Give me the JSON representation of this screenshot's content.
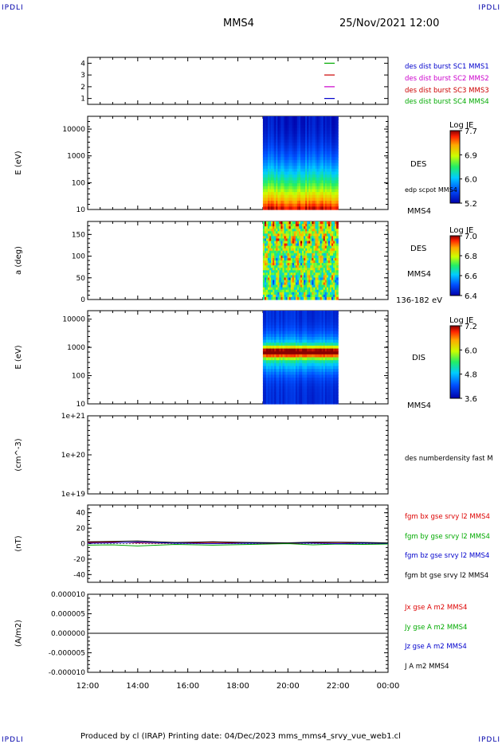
{
  "corners": {
    "top_left": "IPDLI",
    "top_right": "IPDLI",
    "bottom_left": "IPDLI",
    "bottom_right": "IPDLI"
  },
  "header": {
    "spacecraft": "MMS4",
    "datetime": "25/Nov/2021 12:00"
  },
  "footer": {
    "text": "Produced by cl (IRAP)   Printing date: 04/Dec/2023   mms_mms4_srvy_vue_web1.cl"
  },
  "colors": {
    "mms1": "#0000cc",
    "mms2": "#cc00cc",
    "mms3": "#cc0000",
    "mms4": "#00aa00",
    "bx": "#dd0000",
    "by": "#00aa00",
    "bz": "#0000cc",
    "bt": "#000000"
  },
  "chart_data": [
    {
      "type": "line",
      "ylim": [
        0.5,
        4.5
      ],
      "y_ticks": [
        "1",
        "2",
        "3",
        "4"
      ],
      "series": [
        {
          "name": "des dist burst SC1 MMS1",
          "y": 1,
          "color": "#0000cc"
        },
        {
          "name": "des dist burst SC2 MMS2",
          "y": 2,
          "color": "#cc00cc"
        },
        {
          "name": "des dist burst SC3 MMS3",
          "y": 3,
          "color": "#cc0000"
        },
        {
          "name": "des dist burst SC4 MMS4",
          "y": 4,
          "color": "#00aa00"
        }
      ]
    },
    {
      "type": "heatmap",
      "ylabel": "E (eV)",
      "y_ticks": [
        "10",
        "100",
        "1000",
        "10000"
      ],
      "ylim": [
        10,
        30000
      ],
      "data_range_hours": [
        19.0,
        22.0
      ],
      "colorbar_title": "Log JE",
      "colorbar_ticks": [
        "7.7",
        "6.9",
        "6.0",
        "5.2"
      ],
      "right_labels": [
        "DES",
        "edp scpot MMS4",
        "MMS4"
      ]
    },
    {
      "type": "heatmap",
      "ylabel": "a (deg)",
      "y_ticks": [
        "0",
        "50",
        "100",
        "150"
      ],
      "ylim": [
        0,
        180
      ],
      "data_range_hours": [
        19.0,
        22.0
      ],
      "colorbar_title": "Log JE",
      "colorbar_ticks": [
        "7.0",
        "6.8",
        "6.6",
        "6.4"
      ],
      "right_labels": [
        "DES",
        "MMS4",
        "136-182 eV"
      ]
    },
    {
      "type": "heatmap",
      "ylabel": "E (eV)",
      "y_ticks": [
        "10",
        "100",
        "1000",
        "10000"
      ],
      "ylim": [
        10,
        20000
      ],
      "data_range_hours": [
        19.0,
        22.0
      ],
      "colorbar_title": "Log JE",
      "colorbar_ticks": [
        "7.2",
        "6.0",
        "4.8",
        "3.6"
      ],
      "right_labels": [
        "DIS",
        "MMS4"
      ]
    },
    {
      "type": "line",
      "ylabel": "(cm^-3)",
      "y_ticks": [
        "1e+19",
        "1e+20",
        "1e+21"
      ],
      "right_labels": [
        "des numberdensity fast M"
      ]
    },
    {
      "type": "line",
      "ylabel": "(nT)",
      "y_ticks": [
        "-40",
        "-20",
        "0",
        "20",
        "40"
      ],
      "ylim": [
        -50,
        50
      ],
      "series": [
        {
          "name": "fgm bx gse srvy l2 MMS4",
          "color": "#dd0000",
          "x": [
            12.0,
            13.0,
            14.0,
            15.5,
            17.0,
            18.5,
            20.0,
            21.0,
            22.0,
            23.0,
            24.0
          ],
          "y": [
            1.5,
            2.0,
            1.0,
            0.5,
            1.5,
            0.5,
            0.0,
            1.0,
            1.5,
            0.5,
            0.0
          ]
        },
        {
          "name": "fgm by gse srvy l2 MMS4",
          "color": "#00aa00",
          "x": [
            12.0,
            13.0,
            14.0,
            15.5,
            17.0,
            18.5,
            20.0,
            21.0,
            22.0,
            23.0,
            24.0
          ],
          "y": [
            -2.0,
            -1.5,
            -3.0,
            -1.0,
            -2.0,
            -1.0,
            0.0,
            -1.5,
            -0.5,
            -1.0,
            -0.5
          ]
        },
        {
          "name": "fgm bz gse srvy l2 MMS4",
          "color": "#0000cc",
          "x": [
            12.0,
            13.0,
            14.0,
            15.5,
            17.0,
            18.5,
            20.0,
            21.0,
            22.0,
            23.0,
            24.0
          ],
          "y": [
            0.5,
            1.0,
            2.0,
            0.5,
            0.0,
            0.5,
            1.0,
            0.5,
            0.0,
            0.5,
            0.5
          ]
        },
        {
          "name": "fgm bt gse srvy l2 MMS4",
          "color": "#000000",
          "x": [
            12.0,
            13.0,
            14.0,
            15.5,
            17.0,
            18.5,
            20.0,
            21.0,
            22.0,
            23.0,
            24.0
          ],
          "y": [
            2.5,
            3.0,
            3.5,
            1.5,
            2.5,
            1.5,
            1.0,
            2.0,
            2.0,
            1.5,
            1.0
          ]
        }
      ]
    },
    {
      "type": "line",
      "ylabel": "(A/m2)",
      "y_ticks": [
        "-0.000010",
        "-0.000005",
        "0.000000",
        "0.000005",
        "0.000010"
      ],
      "ylim": [
        -1e-05,
        1e-05
      ],
      "series": [
        {
          "name": "Jx gse A m2 MMS4",
          "color": "#dd0000"
        },
        {
          "name": "Jy gse A m2 MMS4",
          "color": "#00aa00"
        },
        {
          "name": "Jz gse A m2 MMS4",
          "color": "#0000cc"
        },
        {
          "name": "J A m2 MMS4",
          "color": "#000000",
          "x": [
            12.0,
            24.0
          ],
          "y": [
            0.0,
            0.0
          ]
        }
      ]
    }
  ],
  "time_axis": {
    "ticks": [
      "12:00",
      "14:00",
      "16:00",
      "18:00",
      "20:00",
      "22:00",
      "00:00"
    ],
    "range_hours": [
      12,
      24
    ]
  }
}
